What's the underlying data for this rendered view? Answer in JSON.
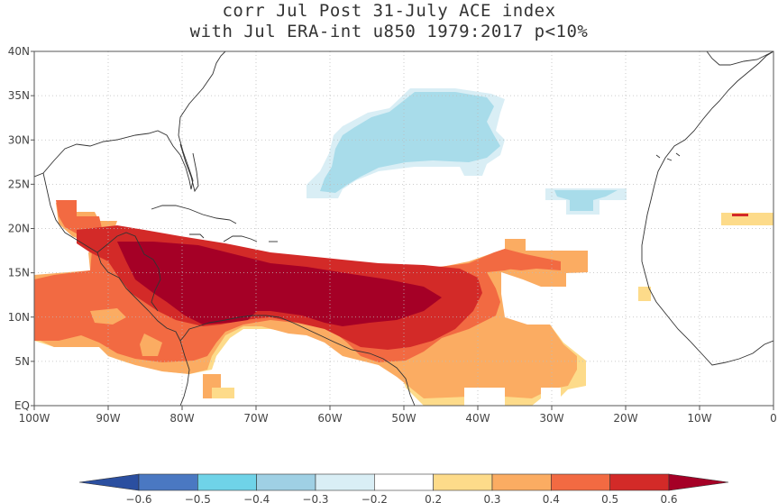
{
  "title": {
    "line1": "corr Jul Post 31-July ACE index",
    "line2": "with Jul ERA-int u850 1979:2017 p<10%"
  },
  "map": {
    "lon_range": [
      -100,
      0
    ],
    "lat_range": [
      0,
      40
    ],
    "grid": "dotted",
    "lon_ticks": [
      "100W",
      "90W",
      "80W",
      "70W",
      "60W",
      "50W",
      "40W",
      "30W",
      "20W",
      "10W",
      "0"
    ],
    "lat_ticks": [
      "EQ",
      "5N",
      "10N",
      "15N",
      "20N",
      "25N",
      "30N",
      "35N",
      "40N"
    ]
  },
  "colorbar": {
    "levels": [
      "-0.6",
      "-0.5",
      "-0.4",
      "-0.3",
      "-0.2",
      "0.2",
      "0.3",
      "0.4",
      "0.5",
      "0.6"
    ],
    "colors": [
      "#2b4fa0",
      "#4a78c2",
      "#6fd3e8",
      "#9fd0e4",
      "#d9eef5",
      "#ffffff",
      "#fddb8a",
      "#fbac62",
      "#f26a42",
      "#d32a28",
      "#a50026"
    ]
  },
  "colors": {
    "c03": "#fddb8a",
    "c04": "#fbac62",
    "c05": "#f26a42",
    "c06": "#d32a28",
    "c07": "#a50026",
    "n03": "#a8dcea",
    "n02": "#d9eef5",
    "coast": "#333333"
  }
}
